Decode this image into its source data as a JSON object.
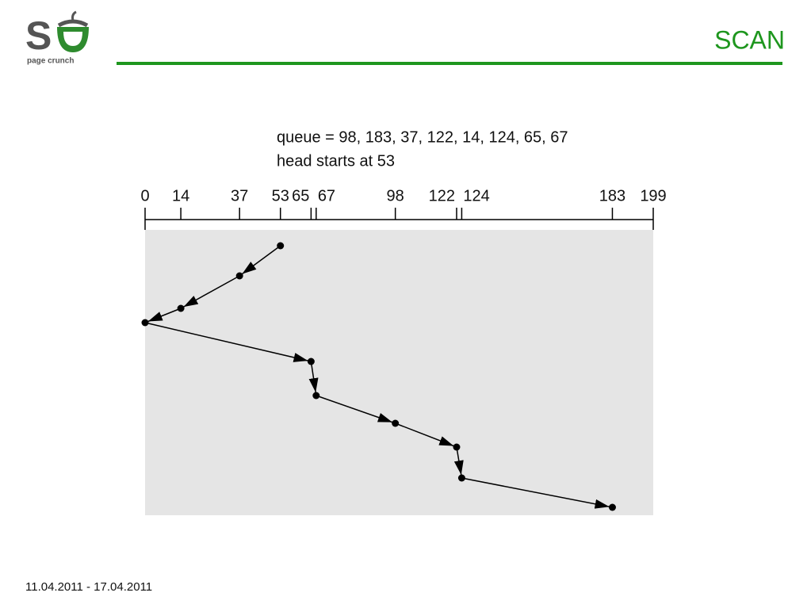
{
  "header": {
    "logo_mark": "S",
    "logo_text": "page crunch",
    "title": "SCAN"
  },
  "diagram": {
    "caption": [
      "queue = 98, 183, 37, 122, 14, 124, 65, 67",
      "head starts at 53"
    ],
    "axis": {
      "lim": [
        0,
        199
      ],
      "ticks": [
        0,
        14,
        37,
        53,
        65,
        67,
        98,
        122,
        124,
        183,
        199
      ]
    },
    "path": [
      53,
      37,
      14,
      0,
      65,
      67,
      98,
      122,
      124,
      183
    ]
  },
  "footer": {
    "date": "11.04.2011 - 17.04.2011"
  }
}
